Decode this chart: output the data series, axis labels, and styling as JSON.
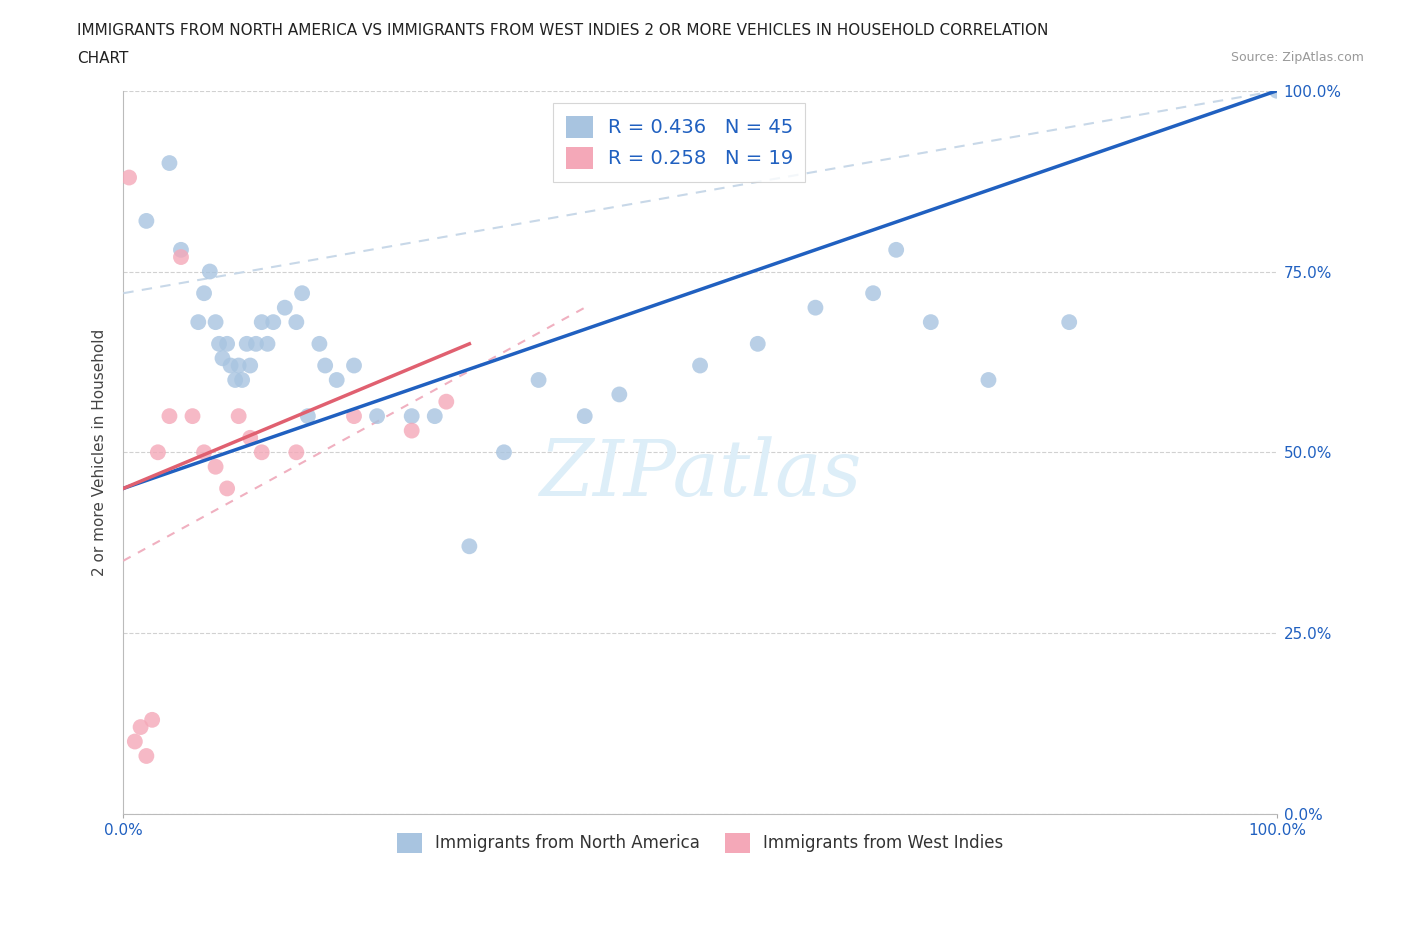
{
  "title_line1": "IMMIGRANTS FROM NORTH AMERICA VS IMMIGRANTS FROM WEST INDIES 2 OR MORE VEHICLES IN HOUSEHOLD CORRELATION",
  "title_line2": "CHART",
  "source": "Source: ZipAtlas.com",
  "ylabel": "2 or more Vehicles in Household",
  "blue_R": 0.436,
  "blue_N": 45,
  "pink_R": 0.258,
  "pink_N": 19,
  "blue_color": "#a8c4e0",
  "pink_color": "#f4a8b8",
  "blue_line_color": "#2060c0",
  "pink_line_color": "#e06070",
  "trendline_gray_dashed_color": "#c8d8e8",
  "trendline_pink_dashed_color": "#f0b0c0",
  "watermark_color": "#ddeef8",
  "blue_x": [
    2.0,
    4.0,
    5.0,
    6.5,
    7.0,
    7.5,
    8.0,
    8.3,
    8.6,
    9.0,
    9.3,
    9.7,
    10.0,
    10.3,
    10.7,
    11.0,
    11.5,
    12.0,
    12.5,
    13.0,
    14.0,
    15.0,
    15.5,
    16.0,
    17.0,
    17.5,
    18.5,
    20.0,
    22.0,
    25.0,
    27.0,
    30.0,
    33.0,
    36.0,
    40.0,
    43.0,
    50.0,
    55.0,
    60.0,
    65.0,
    67.0,
    70.0,
    75.0,
    82.0,
    100.0
  ],
  "blue_y": [
    82.0,
    90.0,
    78.0,
    68.0,
    72.0,
    75.0,
    68.0,
    65.0,
    63.0,
    65.0,
    62.0,
    60.0,
    62.0,
    60.0,
    65.0,
    62.0,
    65.0,
    68.0,
    65.0,
    68.0,
    70.0,
    68.0,
    72.0,
    55.0,
    65.0,
    62.0,
    60.0,
    62.0,
    55.0,
    55.0,
    55.0,
    37.0,
    50.0,
    60.0,
    55.0,
    58.0,
    62.0,
    65.0,
    70.0,
    72.0,
    78.0,
    68.0,
    60.0,
    68.0,
    100.0
  ],
  "pink_x": [
    0.5,
    1.0,
    1.5,
    2.0,
    2.5,
    3.0,
    4.0,
    5.0,
    6.0,
    7.0,
    8.0,
    9.0,
    10.0,
    11.0,
    12.0,
    15.0,
    20.0,
    25.0,
    28.0
  ],
  "pink_y": [
    88.0,
    10.0,
    12.0,
    8.0,
    13.0,
    50.0,
    55.0,
    77.0,
    55.0,
    50.0,
    48.0,
    45.0,
    55.0,
    52.0,
    50.0,
    50.0,
    55.0,
    53.0,
    57.0
  ],
  "xlim": [
    0,
    100
  ],
  "ylim": [
    0,
    100
  ],
  "yticks": [
    0,
    25,
    50,
    75,
    100
  ],
  "xticks": [
    0,
    100
  ]
}
